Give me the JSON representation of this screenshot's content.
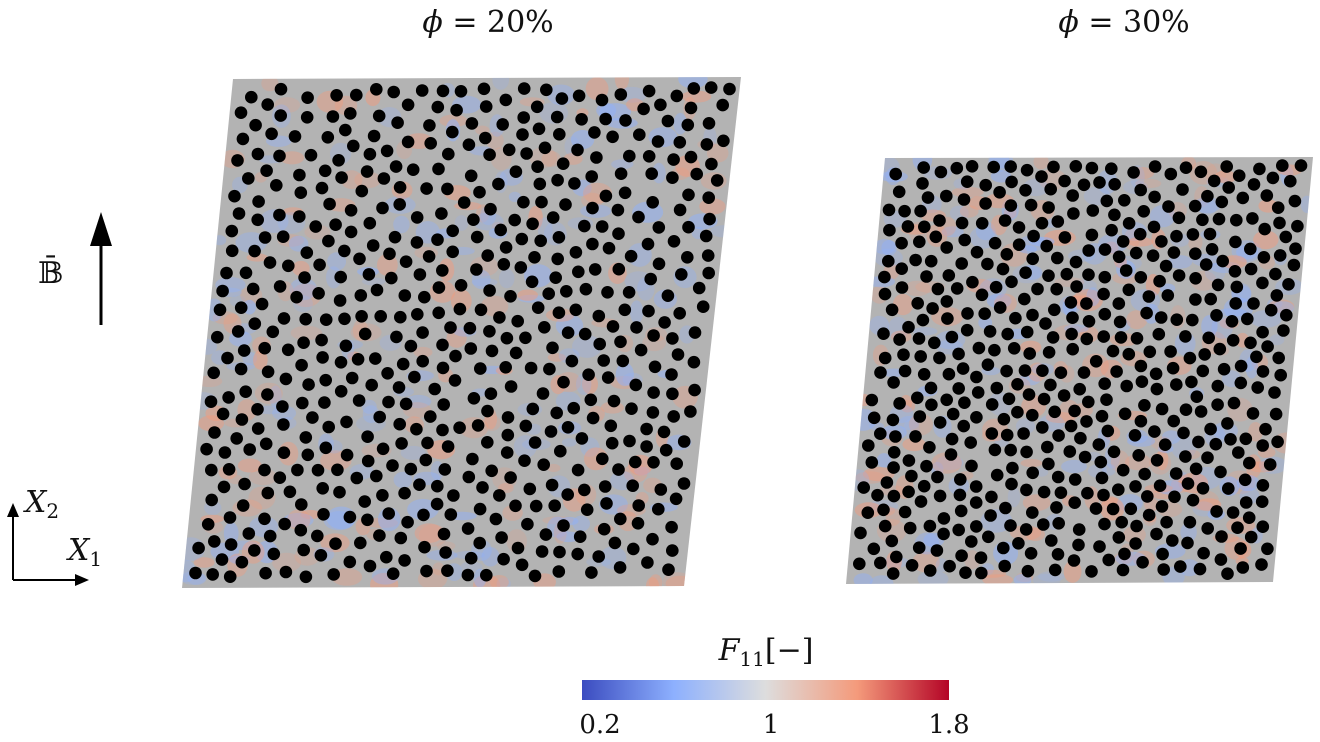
{
  "panels": [
    {
      "id": "left",
      "title": "ϕ = 20%",
      "title_symbol": "ϕ",
      "title_rest": " = 20%",
      "volume_fraction_percent": 20
    },
    {
      "id": "right",
      "title": "ϕ = 30%",
      "title_symbol": "ϕ",
      "title_rest": " = 30%",
      "volume_fraction_percent": 30
    }
  ],
  "field_label": "𝔹̄",
  "axes": {
    "x2": "X",
    "x2_sub": "2",
    "x1": "X",
    "x1_sub": "1"
  },
  "colorbar": {
    "label_main": "F",
    "label_sub": "11",
    "label_unit": "[−]",
    "min": 0.2,
    "mid": 1,
    "max": 1.8,
    "ticks": [
      "0.2",
      "1",
      "1.8"
    ],
    "colors": [
      "#3b4cc0",
      "#8db0fe",
      "#dddddd",
      "#f49a7b",
      "#b40426"
    ]
  },
  "colors": {
    "matrix": "#b3b3b3",
    "particle": "#000000"
  }
}
